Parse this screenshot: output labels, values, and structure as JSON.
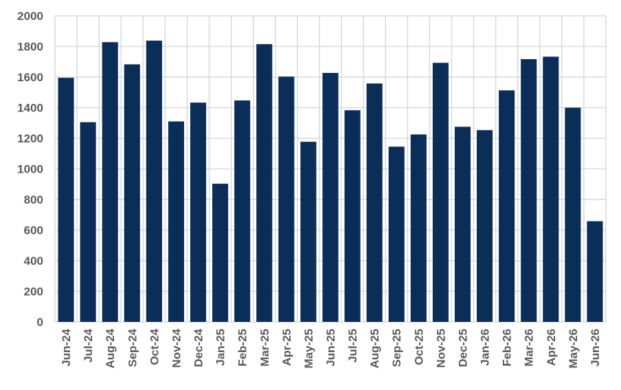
{
  "chart_data": {
    "type": "bar",
    "title": "",
    "xlabel": "",
    "ylabel": "",
    "ylim": [
      0,
      2000
    ],
    "yticks": [
      "0",
      "200",
      "400",
      "600",
      "800",
      "1000",
      "1200",
      "1400",
      "1600",
      "1800",
      "2000"
    ],
    "grid": true,
    "legend": "none",
    "categories": [
      "Jun-24",
      "Jul-24",
      "Aug-24",
      "Sep-24",
      "Oct-24",
      "Nov-24",
      "Dec-24",
      "Jan-25",
      "Feb-25",
      "Mar-25",
      "Apr-25",
      "May-25",
      "Jun-25",
      "Jul-25",
      "Aug-25",
      "Sep-25",
      "Oct-25",
      "Nov-25",
      "Dec-25",
      "Jan-26",
      "Feb-26",
      "Mar-26",
      "Apr-26",
      "May-26",
      "Jun-26"
    ],
    "values": [
      1595,
      1305,
      1828,
      1683,
      1838,
      1310,
      1433,
      903,
      1447,
      1815,
      1603,
      1177,
      1627,
      1383,
      1558,
      1145,
      1225,
      1693,
      1275,
      1253,
      1513,
      1717,
      1733,
      1400,
      658
    ],
    "colors": {
      "bar": "#0b2e59",
      "grid": "#d9d9d9",
      "text": "#595959"
    }
  }
}
